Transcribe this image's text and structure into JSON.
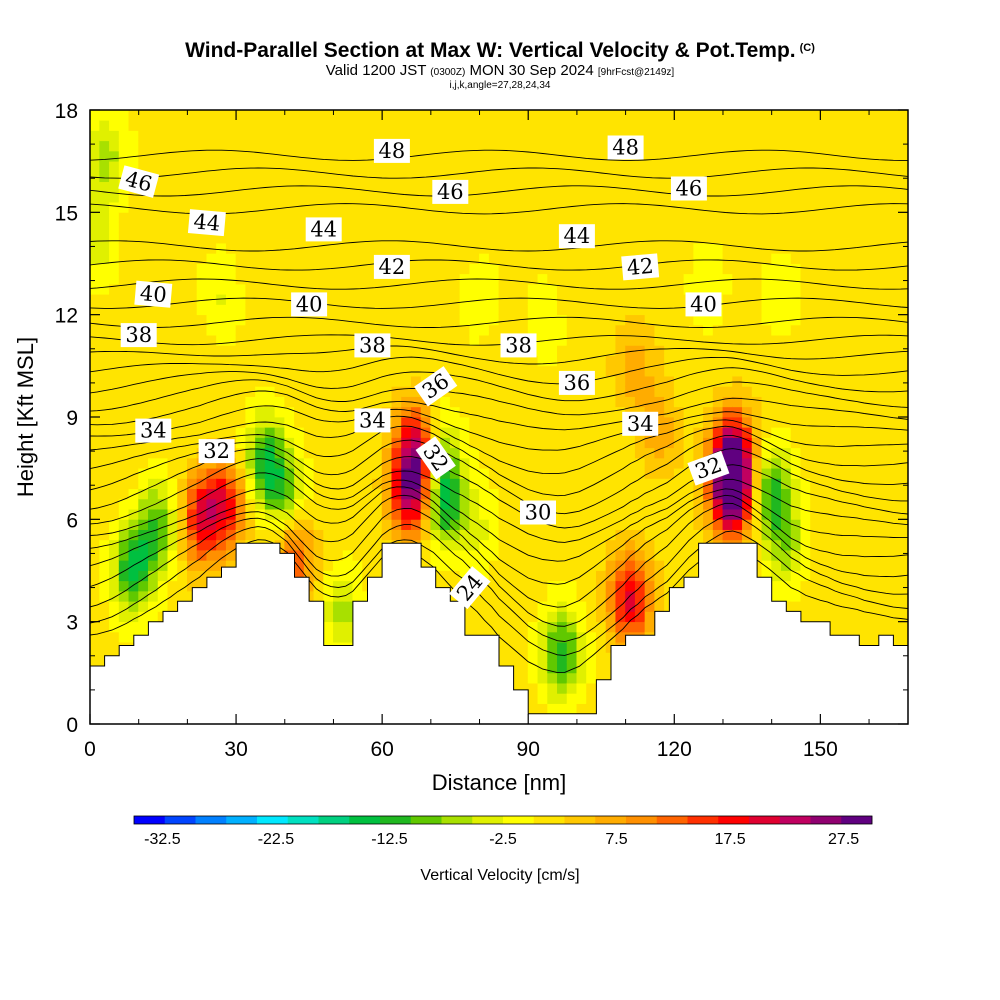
{
  "header": {
    "title": "Wind-Parallel Section at Max W: Vertical Velocity & Pot.Temp.",
    "copyright": "(C)",
    "valid_prefix": "Valid 1200 JST",
    "valid_utc": "(0300Z)",
    "valid_date": "MON 30 Sep 2024",
    "forecast": "[9hrFcst@2149z]",
    "indices": "i,j,k,angle=27,28,24,34"
  },
  "chart_data": {
    "type": "heatmap",
    "xlabel": "Distance [nm]",
    "ylabel": "Height [Kft MSL]",
    "xlim": [
      0,
      168
    ],
    "ylim": [
      0,
      18
    ],
    "x_ticks": [
      "0",
      "30",
      "60",
      "90",
      "120",
      "150"
    ],
    "y_ticks": [
      "0",
      "3",
      "6",
      "9",
      "12",
      "15",
      "18"
    ],
    "terrain_profile": [
      [
        0,
        1.7
      ],
      [
        3,
        1.7
      ],
      [
        3,
        2.0
      ],
      [
        6,
        2.0
      ],
      [
        6,
        2.3
      ],
      [
        9,
        2.3
      ],
      [
        9,
        2.6
      ],
      [
        12,
        2.6
      ],
      [
        12,
        3.0
      ],
      [
        15,
        3.0
      ],
      [
        15,
        3.3
      ],
      [
        18,
        3.3
      ],
      [
        18,
        3.6
      ],
      [
        21,
        3.6
      ],
      [
        21,
        4.0
      ],
      [
        24,
        4.0
      ],
      [
        24,
        4.3
      ],
      [
        27,
        4.3
      ],
      [
        27,
        4.6
      ],
      [
        30,
        4.6
      ],
      [
        30,
        5.3
      ],
      [
        39,
        5.3
      ],
      [
        39,
        5.0
      ],
      [
        42,
        5.0
      ],
      [
        42,
        4.3
      ],
      [
        45,
        4.3
      ],
      [
        45,
        3.6
      ],
      [
        48,
        3.6
      ],
      [
        48,
        2.3
      ],
      [
        54,
        2.3
      ],
      [
        54,
        3.6
      ],
      [
        57,
        3.6
      ],
      [
        57,
        4.3
      ],
      [
        60,
        4.3
      ],
      [
        60,
        5.3
      ],
      [
        68,
        5.3
      ],
      [
        68,
        4.6
      ],
      [
        71,
        4.6
      ],
      [
        71,
        4.0
      ],
      [
        74,
        4.0
      ],
      [
        74,
        3.6
      ],
      [
        77,
        3.6
      ],
      [
        77,
        2.6
      ],
      [
        84,
        2.6
      ],
      [
        84,
        1.7
      ],
      [
        87,
        1.7
      ],
      [
        87,
        1.0
      ],
      [
        90,
        1.0
      ],
      [
        90,
        0.3
      ],
      [
        104,
        0.3
      ],
      [
        104,
        1.3
      ],
      [
        107,
        1.3
      ],
      [
        107,
        2.3
      ],
      [
        110,
        2.3
      ],
      [
        110,
        2.6
      ],
      [
        116,
        2.6
      ],
      [
        116,
        3.3
      ],
      [
        119,
        3.3
      ],
      [
        119,
        4.0
      ],
      [
        122,
        4.0
      ],
      [
        122,
        4.3
      ],
      [
        125,
        4.3
      ],
      [
        125,
        5.3
      ],
      [
        133,
        5.3
      ],
      [
        133,
        5.3
      ],
      [
        137,
        5.3
      ],
      [
        137,
        4.3
      ],
      [
        140,
        4.3
      ],
      [
        140,
        3.6
      ],
      [
        143,
        3.6
      ],
      [
        143,
        3.3
      ],
      [
        146,
        3.3
      ],
      [
        146,
        3.0
      ],
      [
        152,
        3.0
      ],
      [
        152,
        2.6
      ],
      [
        158,
        2.6
      ],
      [
        158,
        2.3
      ],
      [
        162,
        2.3
      ],
      [
        162,
        2.6
      ],
      [
        165,
        2.6
      ],
      [
        165,
        2.3
      ],
      [
        168,
        2.3
      ]
    ],
    "velocity_features": [
      {
        "x": 9,
        "y": 4.6,
        "value": -15
      },
      {
        "x": 14,
        "y": 5.8,
        "value": -12
      },
      {
        "x": 23,
        "y": 6.0,
        "value": 17
      },
      {
        "x": 28,
        "y": 6.5,
        "value": 15
      },
      {
        "x": 36,
        "y": 7.7,
        "value": -14
      },
      {
        "x": 40,
        "y": 6.8,
        "value": -10
      },
      {
        "x": 42,
        "y": 4.8,
        "value": 12
      },
      {
        "x": 52,
        "y": 3.3,
        "value": -8
      },
      {
        "x": 66,
        "y": 6.8,
        "value": 22
      },
      {
        "x": 67,
        "y": 8.2,
        "value": 18
      },
      {
        "x": 73,
        "y": 6.5,
        "value": -16
      },
      {
        "x": 72,
        "y": 8.0,
        "value": -8
      },
      {
        "x": 80,
        "y": 5.5,
        "value": -4
      },
      {
        "x": 97,
        "y": 2.0,
        "value": -14
      },
      {
        "x": 111,
        "y": 3.7,
        "value": 18
      },
      {
        "x": 132,
        "y": 6.8,
        "value": 30
      },
      {
        "x": 132,
        "y": 8.0,
        "value": 20
      },
      {
        "x": 140,
        "y": 6.8,
        "value": -13
      },
      {
        "x": 143,
        "y": 5.2,
        "value": -8
      },
      {
        "x": 3,
        "y": 16.5,
        "value": -8
      },
      {
        "x": 2,
        "y": 14.0,
        "value": -5
      },
      {
        "x": 27,
        "y": 12.4,
        "value": -4
      },
      {
        "x": 80,
        "y": 12.2,
        "value": -3
      },
      {
        "x": 93,
        "y": 12.0,
        "value": -3
      },
      {
        "x": 127,
        "y": 13.0,
        "value": -4
      },
      {
        "x": 142,
        "y": 12.3,
        "value": -3
      },
      {
        "x": 112,
        "y": 10.5,
        "value": 5
      },
      {
        "x": 117,
        "y": 8.5,
        "value": 6
      }
    ],
    "theta_levels": [
      22,
      23,
      24,
      25,
      26,
      27,
      28,
      29,
      30,
      31,
      32,
      33,
      34,
      35,
      36,
      37,
      38,
      39,
      40,
      41,
      42,
      43,
      44,
      45,
      46,
      47,
      48,
      49
    ],
    "contour_labels": [
      {
        "value": "46",
        "x": 10,
        "y": 15.9,
        "angle": 15
      },
      {
        "value": "44",
        "x": 24,
        "y": 14.7,
        "angle": 5
      },
      {
        "value": "44",
        "x": 48,
        "y": 14.5,
        "angle": 0
      },
      {
        "value": "48",
        "x": 62,
        "y": 16.8,
        "angle": 0
      },
      {
        "value": "46",
        "x": 74,
        "y": 15.6,
        "angle": 0
      },
      {
        "value": "48",
        "x": 110,
        "y": 16.9,
        "angle": 0
      },
      {
        "value": "46",
        "x": 123,
        "y": 15.7,
        "angle": 0
      },
      {
        "value": "44",
        "x": 100,
        "y": 14.3,
        "angle": 0
      },
      {
        "value": "42",
        "x": 62,
        "y": 13.4,
        "angle": 0
      },
      {
        "value": "42",
        "x": 113,
        "y": 13.4,
        "angle": -5
      },
      {
        "value": "40",
        "x": 13,
        "y": 12.6,
        "angle": 5
      },
      {
        "value": "40",
        "x": 45,
        "y": 12.3,
        "angle": 0
      },
      {
        "value": "40",
        "x": 126,
        "y": 12.3,
        "angle": 0
      },
      {
        "value": "38",
        "x": 10,
        "y": 11.4,
        "angle": 0
      },
      {
        "value": "38",
        "x": 58,
        "y": 11.1,
        "angle": 0
      },
      {
        "value": "38",
        "x": 88,
        "y": 11.1,
        "angle": 0
      },
      {
        "value": "36",
        "x": 71,
        "y": 9.9,
        "angle": -35
      },
      {
        "value": "36",
        "x": 100,
        "y": 10.0,
        "angle": 0
      },
      {
        "value": "34",
        "x": 13,
        "y": 8.6,
        "angle": 0
      },
      {
        "value": "34",
        "x": 58,
        "y": 8.9,
        "angle": 0
      },
      {
        "value": "34",
        "x": 113,
        "y": 8.8,
        "angle": 0
      },
      {
        "value": "32",
        "x": 26,
        "y": 8.0,
        "angle": 0
      },
      {
        "value": "32",
        "x": 71,
        "y": 7.8,
        "angle": 55
      },
      {
        "value": "32",
        "x": 127,
        "y": 7.5,
        "angle": -20
      },
      {
        "value": "30",
        "x": 92,
        "y": 6.2,
        "angle": 0
      },
      {
        "value": "24",
        "x": 78,
        "y": 4.0,
        "angle": -50
      }
    ]
  },
  "colorbar": {
    "title": "Vertical Velocity [cm/s]",
    "range": [
      -35,
      30
    ],
    "labels": [
      "-32.5",
      "-22.5",
      "-12.5",
      "-2.5",
      "7.5",
      "17.5",
      "27.5"
    ],
    "colors": [
      "#0000ff",
      "#0044ff",
      "#0080ff",
      "#00b0ff",
      "#00e8ff",
      "#00e0c0",
      "#00d080",
      "#00c040",
      "#20b820",
      "#60c800",
      "#a8e000",
      "#e0f000",
      "#ffff00",
      "#ffe400",
      "#ffc800",
      "#ffac00",
      "#ff9000",
      "#ff6400",
      "#ff3000",
      "#ff0000",
      "#e00030",
      "#c00060",
      "#900070",
      "#600080"
    ]
  }
}
